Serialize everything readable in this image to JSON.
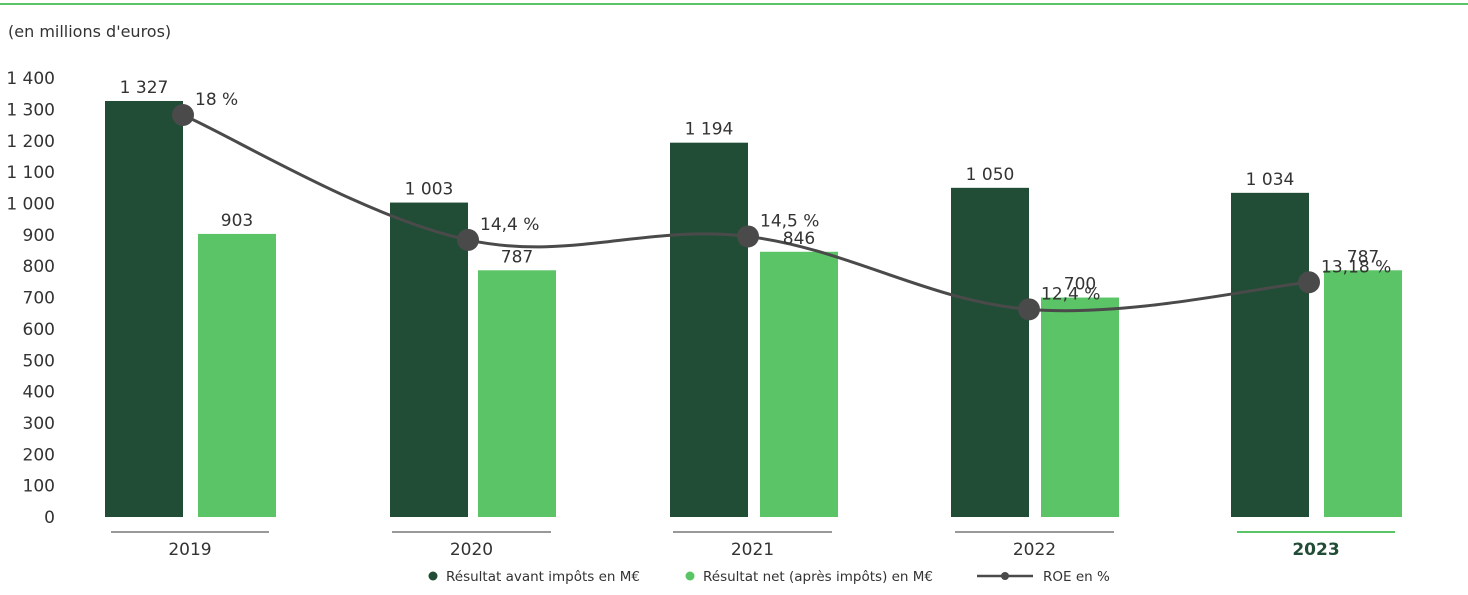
{
  "chart_data": {
    "type": "bar",
    "unit_label": "(en millions d'euros)",
    "categories": [
      "2019",
      "2020",
      "2021",
      "2022",
      "2023"
    ],
    "highlighted_category": "2023",
    "ylim": [
      0,
      1400
    ],
    "y_ticks": [
      0,
      100,
      200,
      300,
      400,
      500,
      600,
      700,
      800,
      900,
      1000,
      1100,
      1200,
      1300,
      1400
    ],
    "y_tick_labels": [
      "0",
      "100",
      "200",
      "300",
      "400",
      "500",
      "600",
      "700",
      "800",
      "900",
      "1 000",
      "1 100",
      "1 200",
      "1 300",
      "1 400"
    ],
    "grid": false,
    "legend_position": "bottom-center",
    "series": [
      {
        "name": "Résultat avant impôts en M€",
        "kind": "bar",
        "color": "#214d37",
        "values": [
          1327,
          1003,
          1194,
          1050,
          1034
        ],
        "labels": [
          "1 327",
          "1 003",
          "1 194",
          "1 050",
          "1 034"
        ]
      },
      {
        "name": "Résultat net (après impôts) en M€",
        "kind": "bar",
        "color": "#5bc466",
        "values": [
          903,
          787,
          846,
          700,
          787
        ],
        "labels": [
          "903",
          "787",
          "846",
          "700",
          "787"
        ]
      },
      {
        "name": "ROE en %",
        "kind": "line",
        "color": "#4a4a4a",
        "values": [
          18,
          14.4,
          14.5,
          12.4,
          13.18
        ],
        "labels": [
          "18 %",
          "14,4 %",
          "14,5 %",
          "12,4 %",
          "13,18 %"
        ]
      }
    ],
    "colors": {
      "top_rule": "#5bc466",
      "highlight_year": "#214d37",
      "highlight_rule": "#5bc466",
      "normal_rule": "#333333",
      "text": "#333333"
    }
  }
}
